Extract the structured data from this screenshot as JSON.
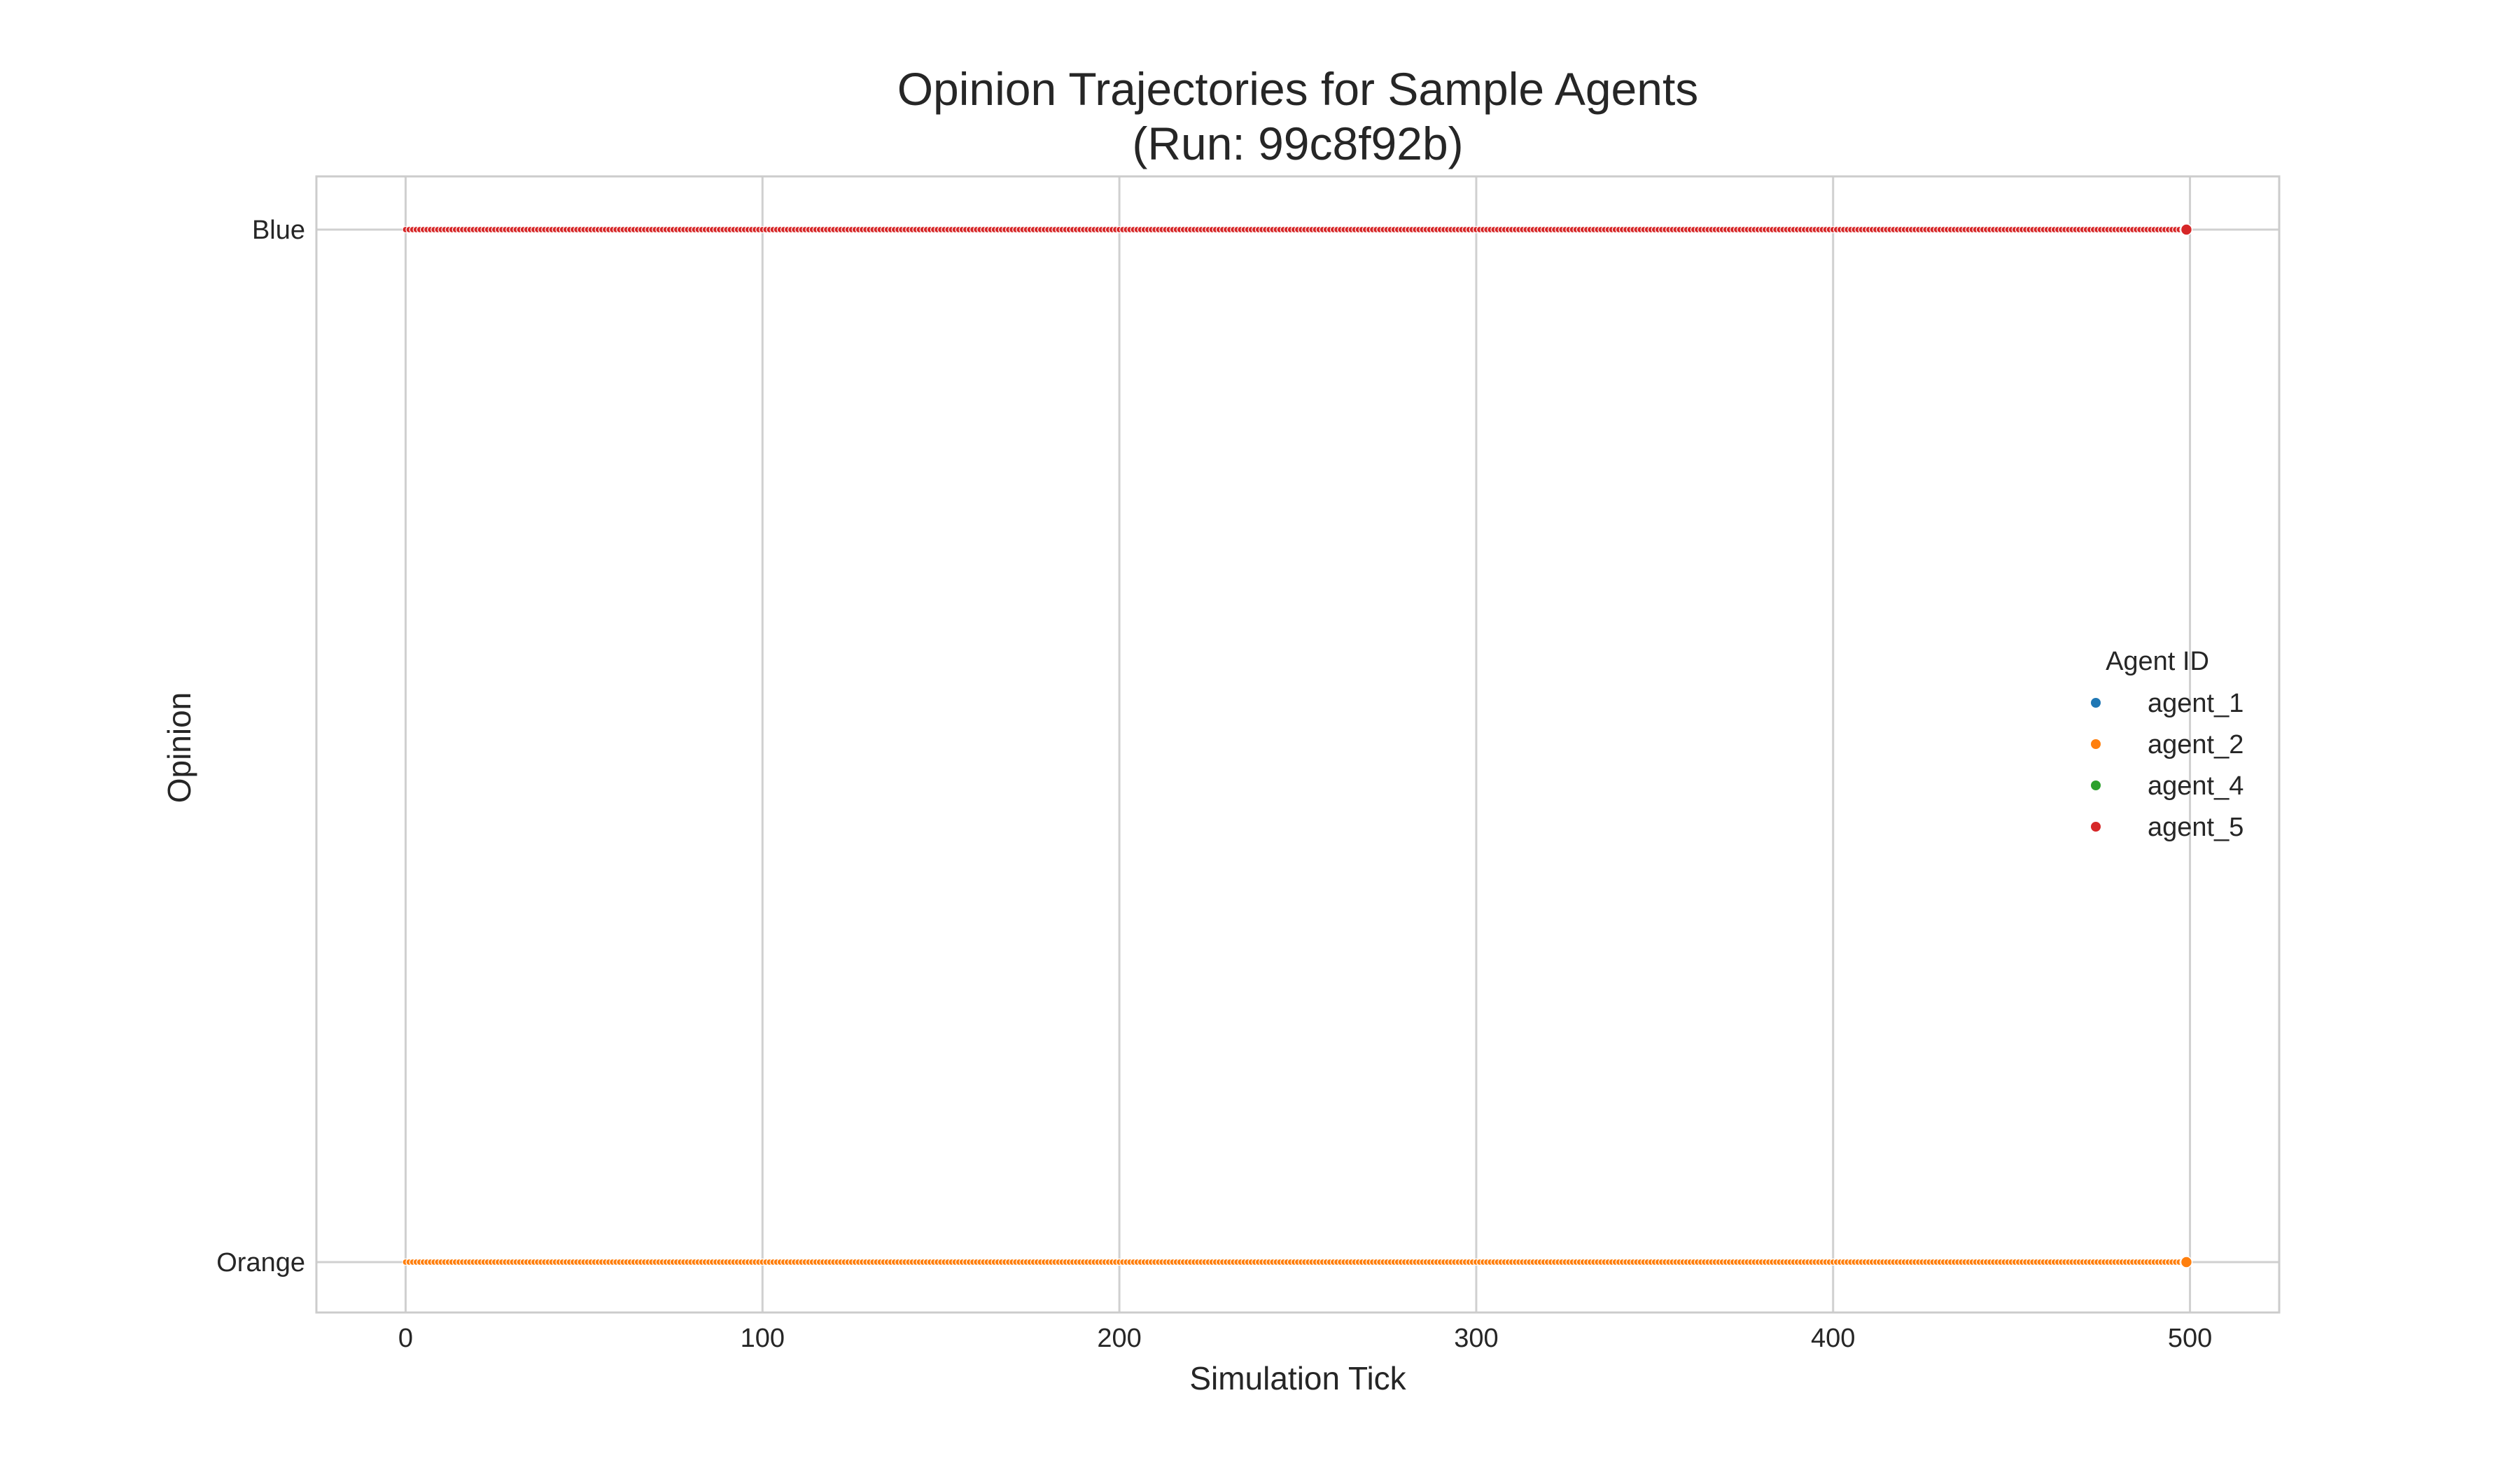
{
  "chart_data": {
    "type": "scatter",
    "title": "Opinion Trajectories for Sample Agents\n(Run: 99c8f92b)",
    "title_lines": [
      "Opinion Trajectories for Sample Agents",
      "(Run: 99c8f92b)"
    ],
    "xlabel": "Simulation Tick",
    "ylabel": "Opinion",
    "xlim": [
      -25,
      525
    ],
    "x_ticks": [
      0,
      100,
      200,
      300,
      400,
      500
    ],
    "x_tick_labels": [
      "0",
      "100",
      "200",
      "300",
      "400",
      "500"
    ],
    "y_categories": [
      "Orange",
      "Blue"
    ],
    "grid": true,
    "legend": {
      "title": "Agent ID",
      "placement": "center-right"
    },
    "x_range": {
      "start": 0,
      "end": 499,
      "step": 1
    },
    "series": [
      {
        "name": "agent_1",
        "color": "#1f77b4",
        "opinion": "Orange"
      },
      {
        "name": "agent_2",
        "color": "#ff7f0e",
        "opinion": "Orange"
      },
      {
        "name": "agent_4",
        "color": "#2ca02c",
        "opinion": "Blue"
      },
      {
        "name": "agent_5",
        "color": "#d62728",
        "opinion": "Blue"
      }
    ]
  }
}
